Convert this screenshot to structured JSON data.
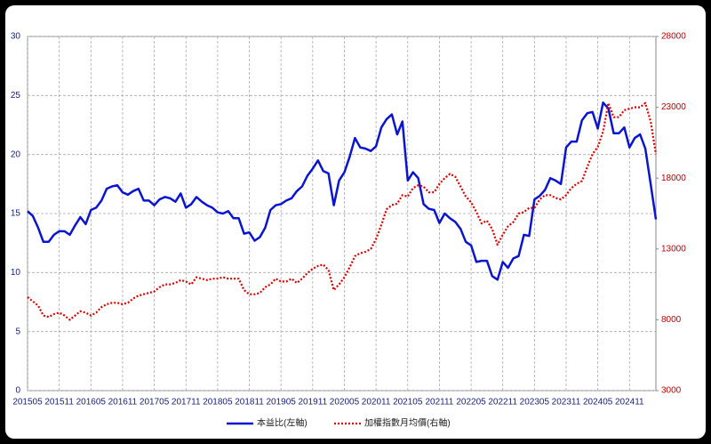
{
  "chart_data": {
    "type": "line",
    "categories": [
      "201505",
      null,
      null,
      null,
      null,
      null,
      "201511",
      null,
      null,
      null,
      null,
      null,
      "201605",
      null,
      null,
      null,
      null,
      null,
      "201611",
      null,
      null,
      null,
      null,
      null,
      "201705",
      null,
      null,
      null,
      null,
      null,
      "201711",
      null,
      null,
      null,
      null,
      null,
      "201805",
      null,
      null,
      null,
      null,
      null,
      "201811",
      null,
      null,
      null,
      null,
      null,
      "201905",
      null,
      null,
      null,
      null,
      null,
      "201911",
      null,
      null,
      null,
      null,
      null,
      "202005",
      null,
      null,
      null,
      null,
      null,
      "202011",
      null,
      null,
      null,
      null,
      null,
      "202105",
      null,
      null,
      null,
      null,
      null,
      "202111",
      null,
      null,
      null,
      null,
      null,
      "202205",
      null,
      null,
      null,
      null,
      null,
      "202211",
      null,
      null,
      null,
      null,
      null,
      "202305",
      null,
      null,
      null,
      null,
      null,
      "202311",
      null,
      null,
      null,
      null,
      null,
      "202405",
      null,
      null,
      null,
      null,
      null,
      "202411",
      null,
      null,
      null,
      null,
      null
    ],
    "series": [
      {
        "name": "本益比(左軸)",
        "color": "#0a14d2",
        "style": "solid",
        "axis": "y",
        "values": [
          15.2,
          14.8,
          13.8,
          12.6,
          12.6,
          13.2,
          13.5,
          13.5,
          13.2,
          14.0,
          14.7,
          14.1,
          15.3,
          15.5,
          16.1,
          17.1,
          17.3,
          17.4,
          16.8,
          16.6,
          16.9,
          17.1,
          16.1,
          16.1,
          15.7,
          16.2,
          16.4,
          16.3,
          16.0,
          16.7,
          15.5,
          15.8,
          16.4,
          16.0,
          15.7,
          15.5,
          15.1,
          15.0,
          15.2,
          14.6,
          14.6,
          13.3,
          13.4,
          12.7,
          13.0,
          13.8,
          15.3,
          15.7,
          15.8,
          16.1,
          16.3,
          16.9,
          17.3,
          18.2,
          18.8,
          19.5,
          18.6,
          18.4,
          15.7,
          17.8,
          18.5,
          19.8,
          21.4,
          20.6,
          20.5,
          20.3,
          20.7,
          22.3,
          23.0,
          23.4,
          21.7,
          22.8,
          17.8,
          18.5,
          18.0,
          15.8,
          15.4,
          15.3,
          14.2,
          15.0,
          14.6,
          14.3,
          13.7,
          12.6,
          12.3,
          10.9,
          11.0,
          11.0,
          9.7,
          9.4,
          10.9,
          10.4,
          11.2,
          11.4,
          13.2,
          13.1,
          16.2,
          16.5,
          17.0,
          18.0,
          17.8,
          17.5,
          20.6,
          21.1,
          21.1,
          22.9,
          23.5,
          23.6,
          22.2,
          24.4,
          23.9,
          21.8,
          21.8,
          22.3,
          20.6,
          21.4,
          21.7,
          20.5,
          17.5,
          14.5
        ]
      },
      {
        "name": "加權指數月均價(右軸)",
        "color": "#e00000",
        "style": "dotted",
        "axis": "y2",
        "values": [
          9600,
          9300,
          9000,
          8300,
          8200,
          8400,
          8500,
          8300,
          8000,
          8300,
          8600,
          8500,
          8300,
          8500,
          8900,
          9100,
          9200,
          9200,
          9100,
          9200,
          9500,
          9700,
          9800,
          9900,
          10000,
          10300,
          10500,
          10500,
          10600,
          10800,
          10700,
          10500,
          11000,
          10900,
          10800,
          10900,
          10900,
          11000,
          10900,
          10900,
          10900,
          10100,
          9800,
          9800,
          9900,
          10300,
          10500,
          10900,
          10700,
          10700,
          10900,
          10600,
          10900,
          11300,
          11600,
          11800,
          11900,
          11500,
          10100,
          10500,
          11000,
          11700,
          12500,
          12700,
          12800,
          13000,
          13700,
          14700,
          15800,
          16100,
          16200,
          16800,
          16700,
          17300,
          17500,
          17400,
          17000,
          17000,
          17600,
          18000,
          18300,
          18100,
          17400,
          16700,
          16300,
          15600,
          14800,
          15000,
          14400,
          13300,
          14000,
          14600,
          14900,
          15500,
          15600,
          15900,
          15900,
          16500,
          16800,
          16800,
          16600,
          16500,
          16800,
          17300,
          17600,
          17800,
          18800,
          19700,
          20200,
          21300,
          23300,
          22300,
          22300,
          22800,
          22900,
          23000,
          23000,
          23300,
          22000,
          19700
        ]
      }
    ],
    "ylim": [
      0,
      30
    ],
    "yticks": [
      0,
      5,
      10,
      15,
      20,
      25,
      30
    ],
    "ytick_color": "#1a237e",
    "y2lim": [
      3000,
      28000
    ],
    "y2ticks": [
      3000,
      8000,
      13000,
      18000,
      23000,
      28000
    ],
    "y2tick_color": "#c00000",
    "grid": true,
    "legend": "bottom"
  }
}
